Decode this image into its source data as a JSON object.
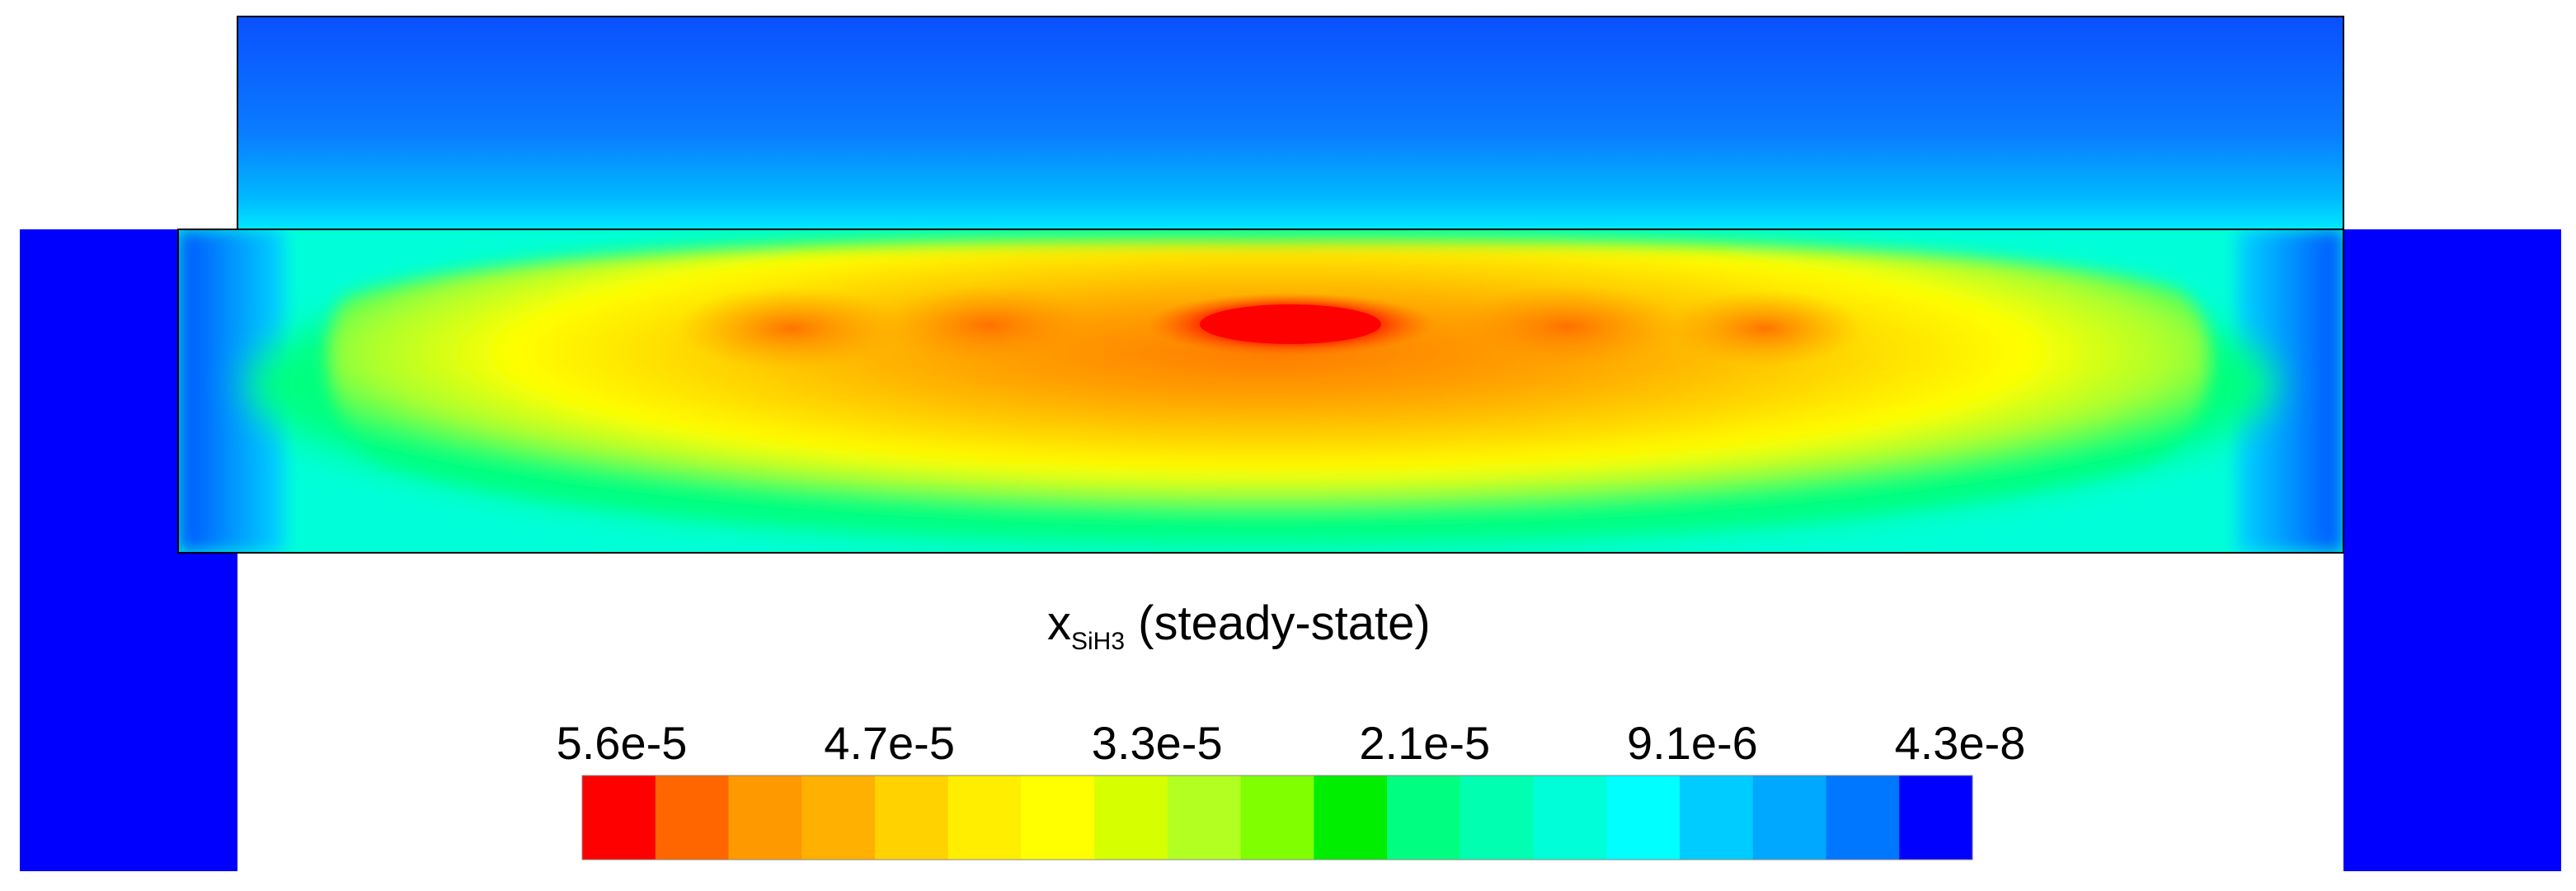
{
  "field": {
    "variable": "x",
    "species": "SiH3",
    "qualifier": "(steady-state)"
  },
  "colorbar": {
    "tick_labels": [
      "5.6e-5",
      "4.7e-5",
      "3.3e-5",
      "2.1e-5",
      "9.1e-6",
      "4.3e-8"
    ],
    "colors": [
      "#ff0000",
      "#ff6600",
      "#ff9900",
      "#ffb000",
      "#ffd200",
      "#ffee00",
      "#ffff00",
      "#d6ff00",
      "#b2ff22",
      "#7fff00",
      "#00ee00",
      "#00ff80",
      "#00ffb0",
      "#00ffd8",
      "#00ffff",
      "#00ccff",
      "#00a8ff",
      "#0077ff",
      "#0000ff"
    ]
  }
}
